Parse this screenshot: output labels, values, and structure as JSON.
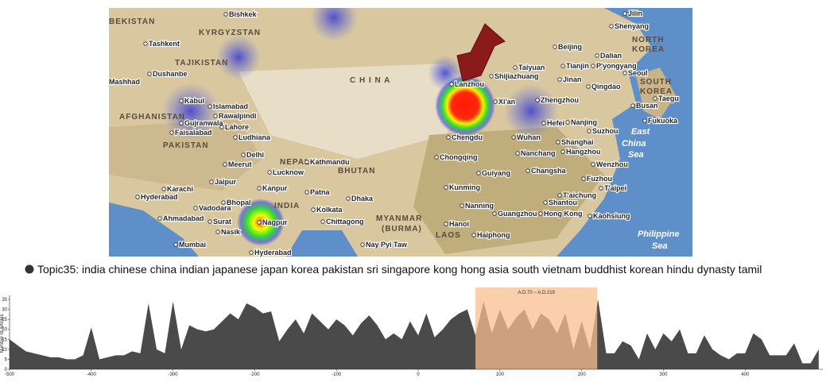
{
  "map": {
    "labels": [
      "BEKISTAN",
      "Bishkek",
      "KYRGYZSTAN",
      "Tashkent",
      "TAJIKISTAN",
      "Dushanbe",
      "Mashhad",
      "Kabul",
      "Islamabad",
      "Rawalpindi",
      "AFGHANISTAN",
      "Gujranwala",
      "Lahore",
      "Faisalabad",
      "Ludhiana",
      "PAKISTAN",
      "Delhi",
      "Meerut",
      "NEPAL",
      "Kathmandu",
      "Lucknow",
      "BHUTAN",
      "Jaipur",
      "Kanpur",
      "Patna",
      "Karachi",
      "Hyderabad",
      "Dhaka",
      "INDIA",
      "Bhopal",
      "Kolkata",
      "Ahmadabad",
      "Vadodara",
      "Surat",
      "Nagpur",
      "Chittagong",
      "MYANMAR",
      "(BURMA)",
      "Nasik",
      "Mumbai",
      "Hyderabad",
      "Nay Pyi Taw",
      "C H I N A",
      "Lanzhou",
      "Xi'an",
      "Zhengzhou",
      "Chengdu",
      "Wuhan",
      "Chongqing",
      "Nanchang",
      "Changsha",
      "Guiyang",
      "Kunming",
      "Nanning",
      "Guangzhou",
      "Hong Kong",
      "Shantou",
      "Hanoi",
      "Haiphong",
      "LAOS",
      "Taiyuan",
      "Shijiazhuang",
      "Beijing",
      "Tianjin",
      "Jinan",
      "Qingdao",
      "Hefei",
      "Nanjing",
      "Suzhou",
      "Shanghai",
      "Hangzhou",
      "Wenzhou",
      "Fuzhou",
      "T'aipei",
      "T'aichung",
      "Kaohsiung",
      "Shenyang",
      "Dalian",
      "P'yongyang",
      "Seoul",
      "NORTH",
      "KOREA",
      "SOUTH",
      "KOREA",
      "Taegu",
      "Busan",
      "Fukuoka",
      "East",
      "China",
      "Sea",
      "Philippine",
      "Sea",
      "Jilin"
    ]
  },
  "chart_data": {
    "type": "area",
    "y_label": "Number of Articles",
    "x": [
      -500,
      -490,
      -480,
      -470,
      -460,
      -450,
      -440,
      -430,
      -420,
      -410,
      -400,
      -390,
      -380,
      -370,
      -360,
      -350,
      -340,
      -330,
      -320,
      -310,
      -300,
      -290,
      -280,
      -270,
      -260,
      -250,
      -240,
      -230,
      -220,
      -210,
      -200,
      -190,
      -180,
      -170,
      -160,
      -150,
      -140,
      -130,
      -120,
      -110,
      -100,
      -90,
      -80,
      -70,
      -60,
      -50,
      -40,
      -30,
      -20,
      -10,
      0,
      10,
      20,
      30,
      40,
      50,
      60,
      70,
      80,
      90,
      100,
      110,
      120,
      130,
      140,
      150,
      160,
      170,
      180,
      190,
      200,
      210,
      220,
      230,
      240,
      250,
      260,
      270,
      280,
      290,
      300,
      310,
      320,
      330,
      340,
      350,
      360,
      370,
      380,
      390,
      400,
      410,
      420,
      430,
      440,
      450,
      460,
      470,
      480,
      490
    ],
    "series": [
      {
        "name": "Topic35: india chinese china indian japanese japan korea pakistan sri singapore kong hong asia south vietnam buddhist korean hindu dynasty tamil",
        "color": "#4a4a4a",
        "values": [
          15,
          12,
          9,
          8,
          7,
          6,
          6,
          5,
          5,
          7,
          21,
          5,
          6,
          7,
          7,
          9,
          8,
          33,
          10,
          8,
          34,
          10,
          22,
          20,
          19,
          20,
          24,
          28,
          25,
          33,
          31,
          28,
          29,
          14,
          20,
          25,
          18,
          28,
          24,
          20,
          25,
          22,
          17,
          23,
          27,
          22,
          15,
          18,
          15,
          24,
          17,
          28,
          16,
          20,
          25,
          28,
          30,
          17,
          34,
          18,
          30,
          20,
          26,
          30,
          20,
          28,
          25,
          18,
          28,
          10,
          24,
          10,
          35,
          8,
          8,
          14,
          12,
          5,
          18,
          10,
          18,
          14,
          20,
          8,
          8,
          17,
          10,
          7,
          5,
          8,
          8,
          18,
          15,
          7,
          7,
          7,
          13,
          3,
          3,
          10
        ]
      }
    ],
    "highlight": {
      "label": "A.D.70 ~ A.D.219",
      "start": 70,
      "end": 219,
      "color": "#f7c08f"
    },
    "xlim": [
      -500,
      495
    ],
    "xticks": [
      -500,
      -400,
      -300,
      -200,
      -100,
      0,
      100,
      200,
      300,
      400
    ],
    "ylim": [
      0,
      35
    ],
    "yticks": [
      0,
      5,
      10,
      15,
      20,
      25,
      30,
      35
    ]
  }
}
